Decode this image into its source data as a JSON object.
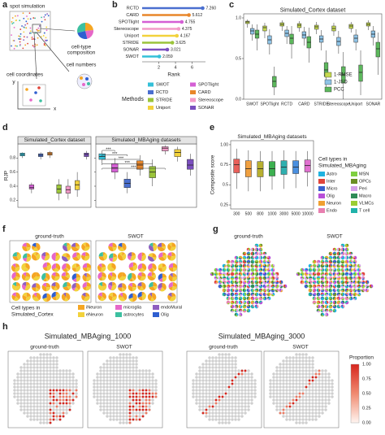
{
  "chart_data": [
    {
      "type": "lollipop",
      "categories": [
        "RCTD",
        "CARD",
        "SPOTlight",
        "Stereoscope",
        "Uniport",
        "STRIDE",
        "SONAR",
        "SWOT"
      ],
      "values": [
        7.26,
        5.612,
        4.755,
        4.375,
        4.167,
        3.625,
        3.021,
        2.059
      ],
      "value_labels": [
        "7.260",
        "5.612",
        "4.755",
        "4.375",
        "4.167",
        "3.625",
        "3.021",
        "2.059"
      ],
      "colors": [
        "#4a6fd0",
        "#e8862a",
        "#d45fd4",
        "#f29ac8",
        "#f2d23c",
        "#9bc43a",
        "#7b4fbf",
        "#34c0d8"
      ],
      "xlim": [
        0,
        7.6
      ],
      "xticks": [
        2,
        4,
        6
      ],
      "x_label": "Rank",
      "legend_title": "Methods",
      "legend": [
        "SWOT",
        "SPOTlight",
        "RCTD",
        "CARD",
        "STRIDE",
        "Stereoscope",
        "Uniport",
        "SONAR"
      ]
    },
    {
      "type": "box",
      "title": "Simulated_Cortex dataset",
      "categories": [
        "SWOT",
        "SPOTlight",
        "RCTD",
        "CARD",
        "STRIDE",
        "Stereoscope",
        "Uniport",
        "SONAR"
      ],
      "series": [
        {
          "name": "1-RMSE",
          "color": "#c5d94e",
          "values": [
            [
              0.88,
              0.93,
              0.95,
              0.96,
              0.98
            ],
            [
              0.75,
              0.84,
              0.88,
              0.9,
              0.94
            ],
            [
              0.84,
              0.9,
              0.92,
              0.94,
              0.97
            ],
            [
              0.83,
              0.88,
              0.91,
              0.93,
              0.96
            ],
            [
              0.8,
              0.86,
              0.89,
              0.91,
              0.95
            ],
            [
              0.78,
              0.84,
              0.87,
              0.9,
              0.94
            ],
            [
              0.82,
              0.87,
              0.9,
              0.92,
              0.95
            ],
            [
              0.85,
              0.9,
              0.92,
              0.94,
              0.97
            ]
          ]
        },
        {
          "name": "1-JSD",
          "color": "#8ec3e6",
          "values": [
            [
              0.72,
              0.8,
              0.84,
              0.87,
              0.92
            ],
            [
              0.55,
              0.68,
              0.73,
              0.78,
              0.86
            ],
            [
              0.68,
              0.77,
              0.81,
              0.85,
              0.9
            ],
            [
              0.66,
              0.75,
              0.79,
              0.83,
              0.89
            ],
            [
              0.6,
              0.7,
              0.74,
              0.78,
              0.85
            ],
            [
              0.56,
              0.66,
              0.71,
              0.76,
              0.84
            ],
            [
              0.6,
              0.7,
              0.75,
              0.79,
              0.86
            ],
            [
              0.66,
              0.76,
              0.8,
              0.84,
              0.9
            ]
          ]
        },
        {
          "name": "PCC",
          "color": "#5cb85c",
          "values": [
            [
              0.6,
              0.75,
              0.8,
              0.85,
              0.92
            ],
            [
              0.05,
              0.15,
              0.22,
              0.28,
              0.4
            ],
            [
              0.5,
              0.68,
              0.75,
              0.8,
              0.9
            ],
            [
              0.45,
              0.63,
              0.7,
              0.77,
              0.88
            ],
            [
              0.1,
              0.28,
              0.36,
              0.45,
              0.6
            ],
            [
              0.0,
              0.2,
              0.3,
              0.4,
              0.58
            ],
            [
              0.05,
              0.22,
              0.33,
              0.42,
              0.6
            ],
            [
              0.3,
              0.52,
              0.62,
              0.7,
              0.82
            ]
          ]
        }
      ],
      "ylim": [
        0,
        1.05
      ],
      "yticks": [
        {
          "value": 0,
          "label": "0.0"
        },
        {
          "value": 0.5,
          "label": "0.5"
        },
        {
          "value": 1,
          "label": "1.0"
        }
      ],
      "legend_position": "bottom-right"
    },
    {
      "type": "box",
      "title": "Simulated_Cortex dataset",
      "y_label": "RJP",
      "values": [
        [
          0.8,
          0.83,
          0.85,
          0.87,
          0.88
        ],
        [
          0.3,
          0.36,
          0.38,
          0.42,
          0.45
        ],
        [
          0.78,
          0.82,
          0.84,
          0.86,
          0.88
        ],
        [
          0.8,
          0.84,
          0.86,
          0.88,
          0.9
        ],
        [
          0.2,
          0.3,
          0.36,
          0.42,
          0.5
        ],
        [
          0.22,
          0.3,
          0.35,
          0.4,
          0.5
        ],
        [
          0.25,
          0.35,
          0.42,
          0.48,
          0.6
        ],
        [
          0.78,
          0.82,
          0.85,
          0.87,
          0.9
        ]
      ],
      "colors": [
        "#34c0d8",
        "#d45fd4",
        "#4a6fd0",
        "#e8862a",
        "#9bc43a",
        "#f29ac8",
        "#f2d23c",
        "#7b4fbf"
      ],
      "ylim": [
        0.1,
        1.0
      ],
      "yticks": [
        0.2,
        0.4,
        0.6,
        0.8
      ]
    },
    {
      "type": "box",
      "title": "Simulated_MBAging datasets",
      "values": [
        [
          0.7,
          0.78,
          0.82,
          0.86,
          0.9
        ],
        [
          0.5,
          0.6,
          0.66,
          0.72,
          0.8
        ],
        [
          0.3,
          0.38,
          0.44,
          0.5,
          0.6
        ],
        [
          0.55,
          0.64,
          0.7,
          0.76,
          0.84
        ],
        [
          0.4,
          0.52,
          0.6,
          0.68,
          0.78
        ],
        [
          0.85,
          0.9,
          0.94,
          0.96,
          0.98
        ],
        [
          0.75,
          0.82,
          0.88,
          0.92,
          0.96
        ],
        [
          0.55,
          0.64,
          0.7,
          0.78,
          0.86
        ]
      ],
      "colors": [
        "#34c0d8",
        "#d45fd4",
        "#4a6fd0",
        "#e8862a",
        "#9bc43a",
        "#f29ac8",
        "#f2d23c",
        "#7b4fbf"
      ],
      "ylim": [
        0.1,
        1.0
      ],
      "yticks": [
        0.2,
        0.4,
        0.6,
        0.8
      ],
      "annotations": [
        "***",
        "***",
        "***",
        "***",
        "***"
      ]
    },
    {
      "type": "box",
      "title": "Simulated_MBAging datasets",
      "y_label": "Composite score",
      "categories": [
        "300",
        "500",
        "800",
        "1000",
        "3000",
        "5000",
        "10000"
      ],
      "values": [
        [
          0.45,
          0.65,
          0.75,
          0.82,
          0.95
        ],
        [
          0.42,
          0.6,
          0.7,
          0.8,
          0.93
        ],
        [
          0.42,
          0.6,
          0.7,
          0.79,
          0.92
        ],
        [
          0.44,
          0.61,
          0.7,
          0.79,
          0.92
        ],
        [
          0.45,
          0.63,
          0.72,
          0.8,
          0.93
        ],
        [
          0.46,
          0.64,
          0.72,
          0.8,
          0.92
        ],
        [
          0.48,
          0.66,
          0.74,
          0.81,
          0.92
        ]
      ],
      "colors": [
        "#e8605a",
        "#f0a040",
        "#b8b030",
        "#3cb050",
        "#30b0b0",
        "#4a8fe0",
        "#e070d0"
      ],
      "ylim": [
        0.2,
        1.05
      ],
      "yticks": [
        0.25,
        0.5,
        0.75,
        {
          "value": 1,
          "label": "1.00"
        }
      ],
      "legend_title": [
        "Cell types in",
        "Simulated_MBAging"
      ],
      "legend": [
        {
          "name": "Astro",
          "color": "#1fb3e0"
        },
        {
          "name": "MSN",
          "color": "#7fcf3f"
        },
        {
          "name": "Inter",
          "color": "#e0453a"
        },
        {
          "name": "OPCs",
          "color": "#6b8e23"
        },
        {
          "name": "Micro",
          "color": "#3a5fcd"
        },
        {
          "name": "Peri",
          "color": "#d4a0e8"
        },
        {
          "name": "Olig",
          "color": "#b84fd8"
        },
        {
          "name": "Macro",
          "color": "#2e8b57"
        },
        {
          "name": "Neuron",
          "color": "#f0a030"
        },
        {
          "name": "VLMCs",
          "color": "#9acd32"
        },
        {
          "name": "Endo",
          "color": "#e87fb0"
        },
        {
          "name": "T cell",
          "color": "#20b2aa"
        }
      ]
    }
  ],
  "figure": {
    "panel_labels": [
      "a",
      "b",
      "c",
      "d",
      "e",
      "f",
      "g",
      "h"
    ],
    "a": {
      "spot_simulation": "spot simulation",
      "composition": [
        "cell-type",
        "composition"
      ],
      "cell_numbers": "cell numbers",
      "cell_coordinates": "cell coordinates",
      "x": "x",
      "y": "y"
    },
    "f": {
      "titles": [
        "ground-truth",
        "SWOT"
      ],
      "legend_title": [
        "Cell types in",
        "Simulated_Cortex"
      ],
      "legend": [
        {
          "name": "iNeuron",
          "color": "#f5a623"
        },
        {
          "name": "microglia",
          "color": "#e667c8"
        },
        {
          "name": "endoMural",
          "color": "#8e5fc0"
        },
        {
          "name": "eNeuron",
          "color": "#f2d23c"
        },
        {
          "name": "astrocytes",
          "color": "#3cc0a0"
        },
        {
          "name": "Olig",
          "color": "#2f5fd0"
        }
      ]
    },
    "g": {
      "titles": [
        "ground-truth",
        "SWOT"
      ]
    },
    "h": {
      "titles": [
        "Simulated_MBAging_1000",
        "Simulated_MBAging_3000"
      ],
      "subtitles": [
        "ground-truth",
        "SWOT",
        "ground-truth",
        "SWOT"
      ],
      "colorbar_title": "Proportion",
      "colorbar_ticks": [
        "1.00",
        "0.75",
        "0.50",
        "0.25",
        "0.00"
      ]
    }
  }
}
